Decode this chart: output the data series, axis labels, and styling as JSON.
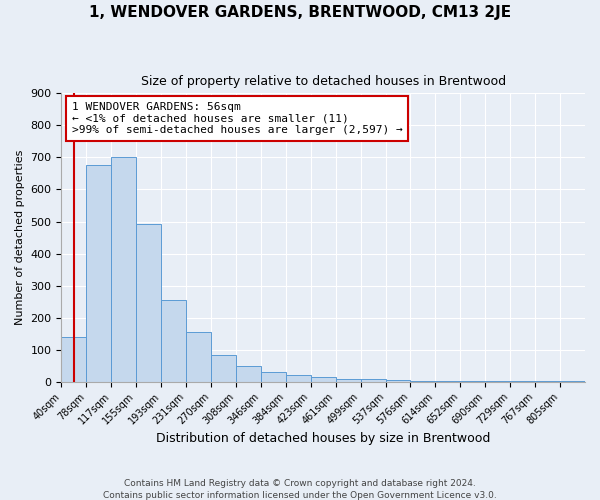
{
  "title": "1, WENDOVER GARDENS, BRENTWOOD, CM13 2JE",
  "subtitle": "Size of property relative to detached houses in Brentwood",
  "xlabel": "Distribution of detached houses by size in Brentwood",
  "ylabel": "Number of detached properties",
  "footer_line1": "Contains HM Land Registry data © Crown copyright and database right 2024.",
  "footer_line2": "Contains public sector information licensed under the Open Government Licence v3.0.",
  "bin_labels": [
    "40sqm",
    "78sqm",
    "117sqm",
    "155sqm",
    "193sqm",
    "231sqm",
    "270sqm",
    "308sqm",
    "346sqm",
    "384sqm",
    "423sqm",
    "461sqm",
    "499sqm",
    "537sqm",
    "576sqm",
    "614sqm",
    "652sqm",
    "690sqm",
    "729sqm",
    "767sqm",
    "805sqm"
  ],
  "bar_values": [
    140,
    675,
    700,
    493,
    255,
    155,
    85,
    50,
    30,
    20,
    15,
    10,
    8,
    5,
    4,
    3,
    2,
    2,
    1,
    1,
    1
  ],
  "bar_color": "#c5d8ed",
  "bar_edge_color": "#5b9bd5",
  "ylim": [
    0,
    900
  ],
  "yticks": [
    0,
    100,
    200,
    300,
    400,
    500,
    600,
    700,
    800,
    900
  ],
  "annotation_title": "1 WENDOVER GARDENS: 56sqm",
  "annotation_line1": "← <1% of detached houses are smaller (11)",
  "annotation_line2": ">99% of semi-detached houses are larger (2,597) →",
  "annotation_box_color": "#ffffff",
  "annotation_box_edge_color": "#cc0000",
  "red_line_color": "#cc0000",
  "background_color": "#e8eef6",
  "plot_bg_color": "#e8eef6",
  "grid_color": "#ffffff",
  "title_fontsize": 11,
  "subtitle_fontsize": 9,
  "ylabel_fontsize": 8,
  "xlabel_fontsize": 9
}
